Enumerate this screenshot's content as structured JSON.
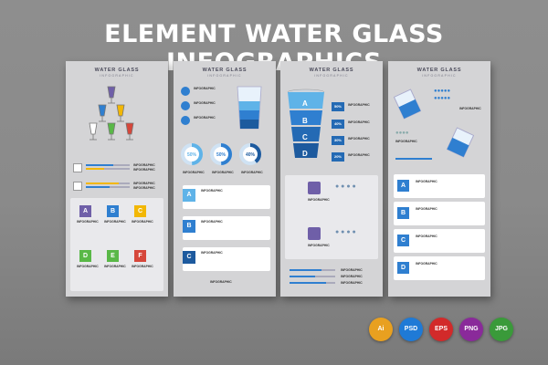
{
  "headline": "ELEMENT WATER GLASS  INFOGRAPHICS",
  "card_title": "WATER GLASS",
  "card_subtitle": "INFOGRAPHIC",
  "label": "INFOGRAPHIC",
  "percents": [
    "50%",
    "50%",
    "40%"
  ],
  "percents_card3": [
    "50%",
    "40%",
    "30%",
    "20%"
  ],
  "letters_card1": [
    "A",
    "B",
    "C",
    "D",
    "E",
    "F"
  ],
  "letters_card2": [
    "A",
    "B",
    "C"
  ],
  "letters_card3": [
    "A",
    "B",
    "C",
    "D"
  ],
  "letters_card4": [
    "A",
    "B",
    "C",
    "D"
  ],
  "formats": [
    "Ai",
    "PSD",
    "EPS",
    "PNG",
    "JPG"
  ],
  "colors": {
    "blue": "#2f7fd0",
    "light_blue": "#5fb3e8",
    "purple": "#6f5fa8",
    "yellow": "#f2b705",
    "green": "#59b847",
    "red": "#d6473b"
  }
}
